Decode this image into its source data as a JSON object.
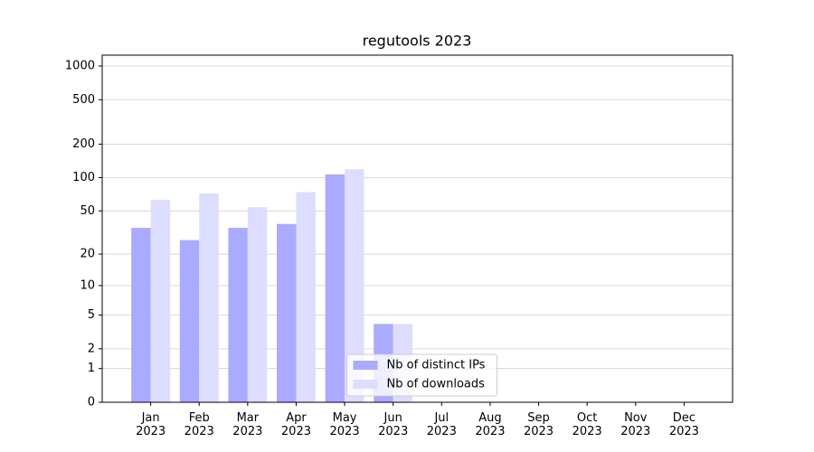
{
  "chart_data": {
    "type": "bar",
    "title": "regutools 2023",
    "categories": [
      "Jan\n2023",
      "Feb\n2023",
      "Mar\n2023",
      "Apr\n2023",
      "May\n2023",
      "Jun\n2023",
      "Jul\n2023",
      "Aug\n2023",
      "Sep\n2023",
      "Oct\n2023",
      "Nov\n2023",
      "Dec\n2023"
    ],
    "series": [
      {
        "name": "Nb of distinct IPs",
        "color": "#aaaaff",
        "values": [
          35,
          27,
          35,
          38,
          107,
          4,
          0,
          0,
          0,
          0,
          0,
          0
        ]
      },
      {
        "name": "Nb of downloads",
        "color": "#ddddff",
        "values": [
          63,
          72,
          54,
          74,
          119,
          4,
          0,
          0,
          0,
          0,
          0,
          0
        ]
      }
    ],
    "yscale": "log1p",
    "ylim": [
      0,
      1250
    ],
    "yticks": [
      0,
      1,
      2,
      5,
      10,
      20,
      50,
      100,
      200,
      500,
      1000
    ],
    "grid": true,
    "legend": "lower center"
  }
}
